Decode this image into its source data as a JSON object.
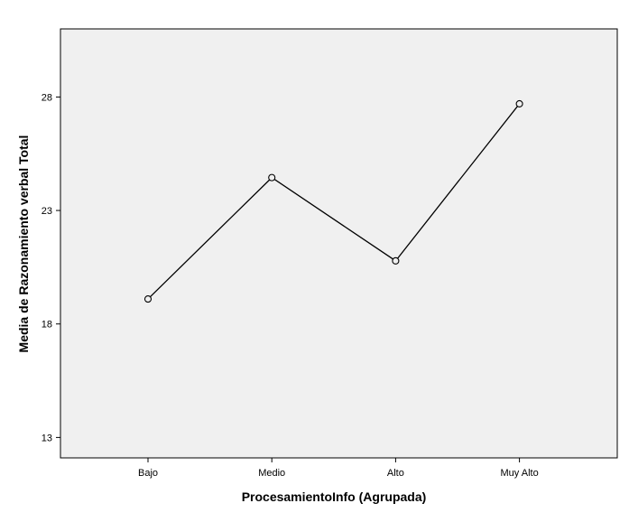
{
  "chart_data": {
    "type": "line",
    "title": "",
    "xlabel": "ProcesamientoInfo (Agrupada)",
    "ylabel": "Media de Razonamiento verbal Total",
    "categories": [
      "Bajo",
      "Medio",
      "Alto",
      "Muy Alto"
    ],
    "series": [
      {
        "values": [
          19.1,
          24.45,
          20.78,
          27.7
        ]
      }
    ],
    "ylim": [
      12.1,
      31.0
    ],
    "yticks": [
      13,
      18,
      23,
      28
    ],
    "grid": false,
    "legend": "none",
    "colors": {
      "plot_background": "#f0f0f0",
      "line": "#000000",
      "frame": "#000000"
    }
  }
}
